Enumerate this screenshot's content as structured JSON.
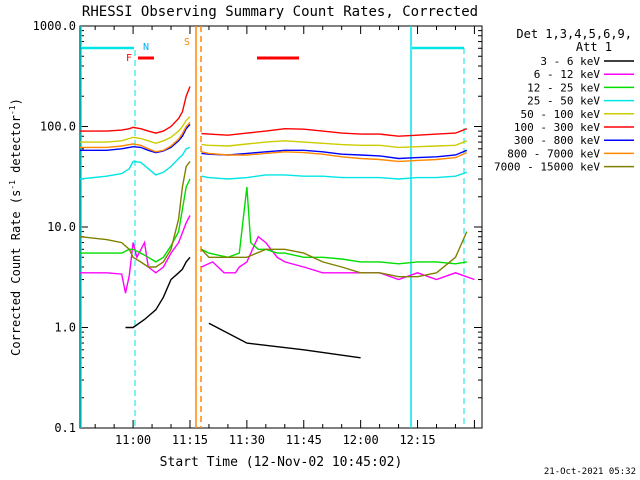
{
  "chart_data": {
    "type": "line",
    "title": "RHESSI Observing Summary Count Rates, Corrected",
    "xlabel": "Start Time (12-Nov-02 10:45:02)",
    "ylabel_main": "Corrected Count Rate (s",
    "ylabel_sup1": "-1",
    "ylabel_mid": " detector",
    "ylabel_sup2": "-1",
    "ylabel_end": ")",
    "yscale": "log",
    "ylim": [
      0.1,
      1000.0
    ],
    "xlim_minutes": [
      -14.0,
      92.0
    ],
    "yticks": [
      {
        "value": 1000.0,
        "label": "1000.0"
      },
      {
        "value": 100.0,
        "label": "100.0"
      },
      {
        "value": 10.0,
        "label": "10.0"
      },
      {
        "value": 1.0,
        "label": "1.0"
      },
      {
        "value": 0.1,
        "label": "0.1"
      }
    ],
    "xticks": [
      {
        "value": 0,
        "label": "11:00"
      },
      {
        "value": 15,
        "label": "11:15"
      },
      {
        "value": 30,
        "label": "11:30"
      },
      {
        "value": 45,
        "label": "11:45"
      },
      {
        "value": 60,
        "label": "12:00"
      },
      {
        "value": 75,
        "label": "12:15"
      }
    ],
    "legend": {
      "placement": "right",
      "header1": "Det 1,3,4,5,6,9,",
      "header2": "Att 1"
    },
    "markers": [
      {
        "label": "N",
        "color": "#00b0f0"
      },
      {
        "label": "F",
        "color": "#ff0000"
      },
      {
        "label": "S",
        "color": "#ff8c00"
      }
    ],
    "timestamp": "21-Oct-2021 05:32",
    "series": [
      {
        "name": "3 - 6 keV",
        "color": "#000000",
        "points": [
          [
            -2,
            1.0
          ],
          [
            0,
            1.0
          ],
          [
            3,
            1.2
          ],
          [
            6,
            1.5
          ],
          [
            8,
            2.0
          ],
          [
            10,
            3.0
          ],
          [
            12,
            3.5
          ],
          [
            13,
            3.8
          ],
          [
            14,
            4.5
          ],
          [
            15,
            5.0
          ],
          [
            20,
            1.1
          ],
          [
            30,
            0.7
          ],
          [
            45,
            0.6
          ],
          [
            60,
            0.5
          ]
        ]
      },
      {
        "name": "6 - 12 keV",
        "color": "#ff00ff",
        "points": [
          [
            -14,
            3.5
          ],
          [
            -7,
            3.5
          ],
          [
            -3,
            3.4
          ],
          [
            -2,
            2.2
          ],
          [
            -1,
            3.3
          ],
          [
            0,
            7.0
          ],
          [
            1,
            5.0
          ],
          [
            3,
            7.0
          ],
          [
            4,
            4.0
          ],
          [
            6,
            3.5
          ],
          [
            8,
            4.0
          ],
          [
            10,
            5.5
          ],
          [
            12,
            7.0
          ],
          [
            14,
            11.0
          ],
          [
            15,
            13.0
          ],
          [
            18,
            4.0
          ],
          [
            21,
            4.5
          ],
          [
            24,
            3.5
          ],
          [
            27,
            3.5
          ],
          [
            28,
            4.0
          ],
          [
            30,
            4.5
          ],
          [
            33,
            8.0
          ],
          [
            35,
            7.0
          ],
          [
            38,
            5.0
          ],
          [
            40,
            4.5
          ],
          [
            45,
            4.0
          ],
          [
            50,
            3.5
          ],
          [
            55,
            3.5
          ],
          [
            60,
            3.5
          ],
          [
            65,
            3.5
          ],
          [
            70,
            3.0
          ],
          [
            75,
            3.5
          ],
          [
            80,
            3.0
          ],
          [
            85,
            3.5
          ],
          [
            90,
            3.0
          ]
        ]
      },
      {
        "name": "12 - 25 keV",
        "color": "#00dd00",
        "points": [
          [
            -14,
            5.5
          ],
          [
            -7,
            5.5
          ],
          [
            -3,
            5.5
          ],
          [
            -1,
            6.0
          ],
          [
            0,
            6.0
          ],
          [
            2,
            5.5
          ],
          [
            4,
            5.0
          ],
          [
            6,
            4.5
          ],
          [
            8,
            5.0
          ],
          [
            10,
            6.5
          ],
          [
            12,
            9.0
          ],
          [
            13,
            15.0
          ],
          [
            14,
            25.0
          ],
          [
            15,
            30.0
          ],
          [
            18,
            6.0
          ],
          [
            20,
            5.5
          ],
          [
            25,
            5.0
          ],
          [
            28,
            5.5
          ],
          [
            30,
            25.0
          ],
          [
            31,
            7.0
          ],
          [
            33,
            6.0
          ],
          [
            35,
            6.0
          ],
          [
            38,
            5.5
          ],
          [
            40,
            5.5
          ],
          [
            45,
            5.0
          ],
          [
            50,
            5.0
          ],
          [
            55,
            4.8
          ],
          [
            60,
            4.5
          ],
          [
            65,
            4.5
          ],
          [
            70,
            4.3
          ],
          [
            75,
            4.5
          ],
          [
            80,
            4.5
          ],
          [
            85,
            4.3
          ],
          [
            88,
            4.5
          ]
        ]
      },
      {
        "name": "25 - 50 keV",
        "color": "#00e5e5",
        "points": [
          [
            -14,
            30
          ],
          [
            -7,
            32
          ],
          [
            -3,
            34
          ],
          [
            -1,
            38
          ],
          [
            0,
            45
          ],
          [
            2,
            44
          ],
          [
            4,
            38
          ],
          [
            6,
            33
          ],
          [
            8,
            35
          ],
          [
            10,
            40
          ],
          [
            12,
            48
          ],
          [
            13,
            52
          ],
          [
            14,
            60
          ],
          [
            15,
            62
          ],
          [
            18,
            32
          ],
          [
            20,
            31
          ],
          [
            25,
            30
          ],
          [
            30,
            31
          ],
          [
            35,
            33
          ],
          [
            40,
            33
          ],
          [
            45,
            32
          ],
          [
            50,
            32
          ],
          [
            55,
            31
          ],
          [
            60,
            31
          ],
          [
            65,
            31
          ],
          [
            70,
            30
          ],
          [
            75,
            31
          ],
          [
            80,
            31
          ],
          [
            85,
            32
          ],
          [
            88,
            35
          ]
        ]
      },
      {
        "name": "50 - 100 keV",
        "color": "#cccc00",
        "points": [
          [
            -14,
            70
          ],
          [
            -7,
            70
          ],
          [
            -3,
            72
          ],
          [
            -1,
            76
          ],
          [
            0,
            78
          ],
          [
            2,
            76
          ],
          [
            4,
            72
          ],
          [
            6,
            68
          ],
          [
            8,
            72
          ],
          [
            10,
            78
          ],
          [
            12,
            90
          ],
          [
            13,
            100
          ],
          [
            14,
            115
          ],
          [
            15,
            125
          ],
          [
            18,
            66
          ],
          [
            20,
            65
          ],
          [
            25,
            64
          ],
          [
            30,
            67
          ],
          [
            35,
            70
          ],
          [
            40,
            72
          ],
          [
            45,
            70
          ],
          [
            50,
            68
          ],
          [
            55,
            66
          ],
          [
            60,
            65
          ],
          [
            65,
            65
          ],
          [
            70,
            62
          ],
          [
            75,
            63
          ],
          [
            80,
            64
          ],
          [
            85,
            65
          ],
          [
            88,
            72
          ]
        ]
      },
      {
        "name": "100 - 300 keV",
        "color": "#ff0000",
        "points": [
          [
            -14,
            90
          ],
          [
            -7,
            90
          ],
          [
            -3,
            92
          ],
          [
            -1,
            95
          ],
          [
            0,
            98
          ],
          [
            2,
            95
          ],
          [
            4,
            90
          ],
          [
            6,
            86
          ],
          [
            8,
            90
          ],
          [
            10,
            100
          ],
          [
            12,
            120
          ],
          [
            13,
            140
          ],
          [
            14,
            200
          ],
          [
            15,
            250
          ],
          [
            18,
            85
          ],
          [
            20,
            84
          ],
          [
            25,
            82
          ],
          [
            30,
            86
          ],
          [
            35,
            90
          ],
          [
            40,
            95
          ],
          [
            45,
            94
          ],
          [
            50,
            90
          ],
          [
            55,
            86
          ],
          [
            60,
            84
          ],
          [
            65,
            84
          ],
          [
            70,
            80
          ],
          [
            75,
            82
          ],
          [
            80,
            84
          ],
          [
            85,
            86
          ],
          [
            88,
            95
          ]
        ]
      },
      {
        "name": "300 - 800 keV",
        "color": "#0000ff",
        "points": [
          [
            -14,
            58
          ],
          [
            -7,
            58
          ],
          [
            -3,
            60
          ],
          [
            -1,
            62
          ],
          [
            0,
            63
          ],
          [
            2,
            62
          ],
          [
            4,
            58
          ],
          [
            6,
            55
          ],
          [
            8,
            57
          ],
          [
            10,
            62
          ],
          [
            12,
            72
          ],
          [
            13,
            80
          ],
          [
            14,
            95
          ],
          [
            15,
            105
          ],
          [
            18,
            54
          ],
          [
            20,
            53
          ],
          [
            25,
            52
          ],
          [
            30,
            54
          ],
          [
            35,
            56
          ],
          [
            40,
            58
          ],
          [
            45,
            58
          ],
          [
            50,
            56
          ],
          [
            55,
            53
          ],
          [
            60,
            52
          ],
          [
            65,
            51
          ],
          [
            70,
            48
          ],
          [
            75,
            49
          ],
          [
            80,
            50
          ],
          [
            85,
            52
          ],
          [
            88,
            58
          ]
        ]
      },
      {
        "name": "800 - 7000 keV",
        "color": "#ff8800",
        "points": [
          [
            -14,
            62
          ],
          [
            -7,
            62
          ],
          [
            -3,
            64
          ],
          [
            -1,
            66
          ],
          [
            0,
            67
          ],
          [
            2,
            65
          ],
          [
            4,
            60
          ],
          [
            6,
            56
          ],
          [
            8,
            58
          ],
          [
            10,
            64
          ],
          [
            12,
            75
          ],
          [
            13,
            85
          ],
          [
            14,
            100
          ],
          [
            15,
            110
          ],
          [
            18,
            56
          ],
          [
            20,
            54
          ],
          [
            25,
            52
          ],
          [
            30,
            52
          ],
          [
            35,
            54
          ],
          [
            40,
            56
          ],
          [
            45,
            55
          ],
          [
            50,
            53
          ],
          [
            55,
            50
          ],
          [
            60,
            48
          ],
          [
            65,
            47
          ],
          [
            70,
            45
          ],
          [
            75,
            46
          ],
          [
            80,
            47
          ],
          [
            85,
            49
          ],
          [
            88,
            55
          ]
        ]
      },
      {
        "name": "7000 - 15000 keV",
        "color": "#808000",
        "points": [
          [
            -14,
            8.0
          ],
          [
            -7,
            7.5
          ],
          [
            -3,
            7.0
          ],
          [
            -1,
            6.0
          ],
          [
            0,
            5.0
          ],
          [
            2,
            4.5
          ],
          [
            4,
            4.0
          ],
          [
            6,
            4.0
          ],
          [
            8,
            4.5
          ],
          [
            10,
            6.0
          ],
          [
            12,
            12.0
          ],
          [
            13,
            25.0
          ],
          [
            14,
            40.0
          ],
          [
            15,
            45.0
          ],
          [
            18,
            6.0
          ],
          [
            20,
            5.0
          ],
          [
            25,
            5.0
          ],
          [
            28,
            5.0
          ],
          [
            30,
            5.0
          ],
          [
            35,
            6.0
          ],
          [
            40,
            6.0
          ],
          [
            45,
            5.5
          ],
          [
            50,
            4.5
          ],
          [
            55,
            4.0
          ],
          [
            60,
            3.5
          ],
          [
            65,
            3.5
          ],
          [
            70,
            3.2
          ],
          [
            75,
            3.2
          ],
          [
            80,
            3.5
          ],
          [
            85,
            5.0
          ],
          [
            88,
            9.0
          ]
        ]
      }
    ]
  }
}
